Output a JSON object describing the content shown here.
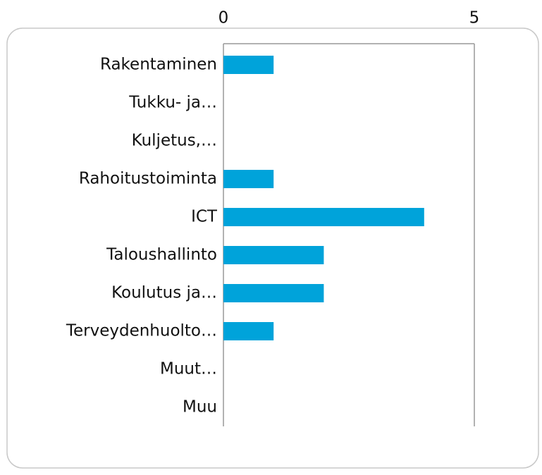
{
  "chart_data": {
    "type": "bar",
    "orientation": "horizontal",
    "categories": [
      "Rakentaminen",
      "Tukku- ja…",
      "Kuljetus,…",
      "Rahoitustoiminta",
      "ICT",
      "Taloushallinto",
      "Koulutus ja…",
      "Terveydenhuolto…",
      "Muut…",
      "Muu"
    ],
    "values": [
      1,
      0,
      0,
      1,
      4,
      2,
      2,
      1,
      0,
      0
    ],
    "color": "#00a3da",
    "xlim": [
      0,
      5
    ],
    "xticks": [
      0,
      5
    ],
    "grid": true
  }
}
